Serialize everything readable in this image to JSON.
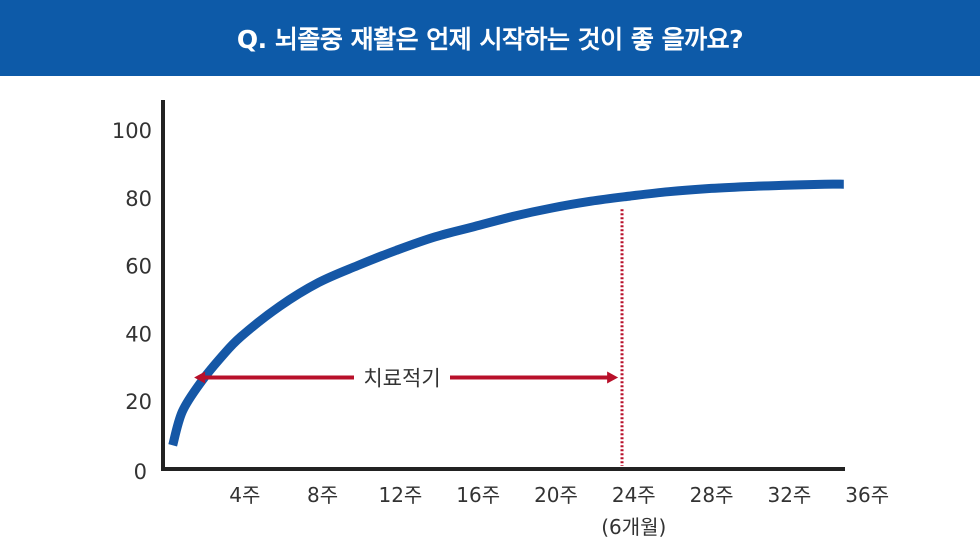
{
  "header": {
    "title": "Q. 뇌졸중 재활은 언제 시작하는 것이 좋 을까요?"
  },
  "colors": {
    "header_bg": "#0d5aa8",
    "curve": "#1557a6",
    "arrow": "#b8102a",
    "axis": "#222222",
    "text": "#333333"
  },
  "chart_data": {
    "type": "line",
    "title": "",
    "xlabel": "",
    "ylabel": "",
    "ylim": [
      0,
      100
    ],
    "yticks": [
      "0",
      "20",
      "40",
      "60",
      "80",
      "100"
    ],
    "xticks": [
      {
        "week": 4,
        "label": "4주"
      },
      {
        "week": 8,
        "label": "8주"
      },
      {
        "week": 12,
        "label": "12주"
      },
      {
        "week": 16,
        "label": "16주"
      },
      {
        "week": 20,
        "label": "20주"
      },
      {
        "week": 24,
        "label": "24주",
        "sublabel": "(6개월)"
      },
      {
        "week": 28,
        "label": "28주"
      },
      {
        "week": 32,
        "label": "32주"
      },
      {
        "week": 36,
        "label": "36주"
      }
    ],
    "xlim": [
      0,
      37.5
    ],
    "series": [
      {
        "x": [
          0.5,
          1,
          2,
          3,
          4,
          6,
          8,
          10,
          12,
          14,
          16,
          18,
          20,
          22,
          24,
          26,
          28,
          30,
          32,
          34,
          35
        ],
        "values": [
          7,
          17,
          26,
          33,
          39,
          48,
          55,
          60,
          64.5,
          68.5,
          71.5,
          74.5,
          77,
          79,
          80.5,
          81.8,
          82.7,
          83.3,
          83.7,
          84,
          84
        ]
      }
    ],
    "annotation": {
      "label": "치료적기",
      "arrow_from_week": 1.6,
      "arrow_to_week": 23.4,
      "y": 27,
      "vline_week": 23.6,
      "vline_top": 79
    }
  }
}
